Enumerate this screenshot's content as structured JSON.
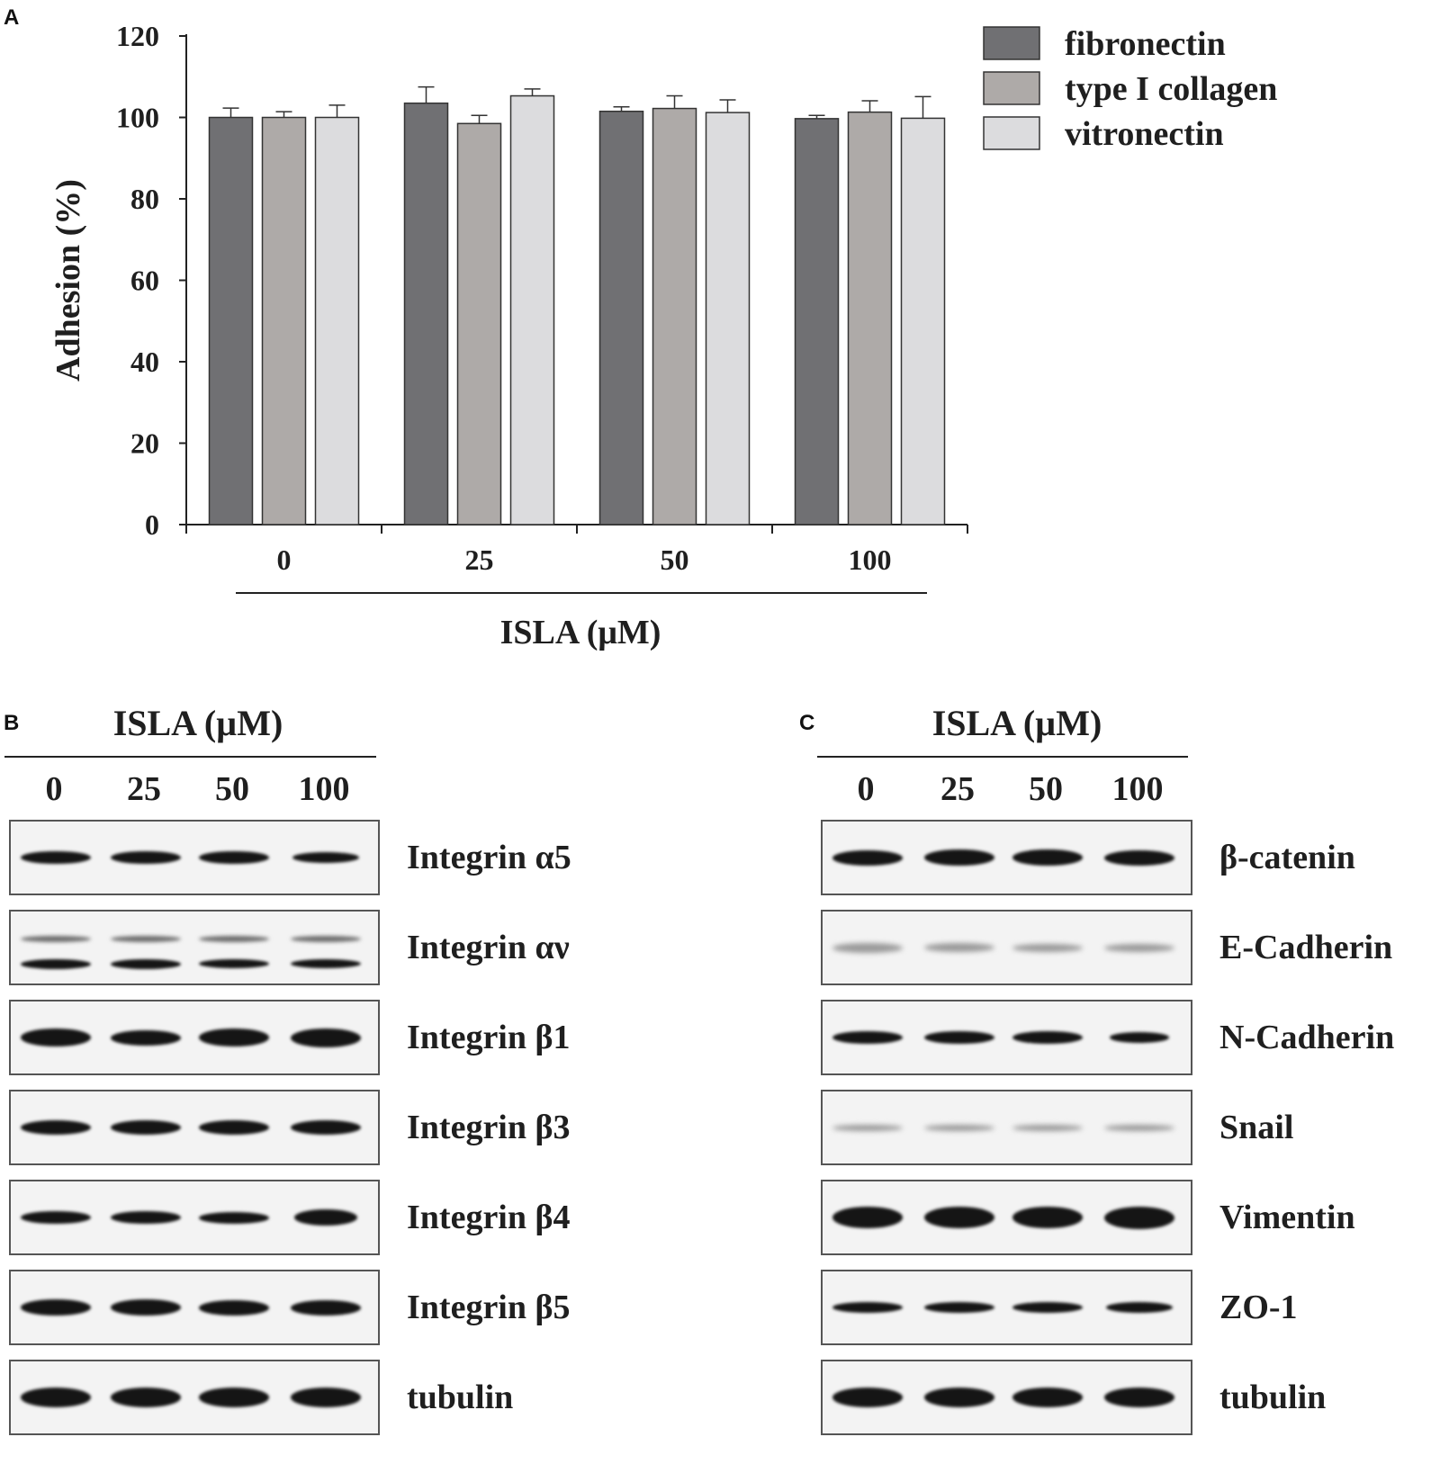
{
  "panels": {
    "a": {
      "letter": "A"
    },
    "b": {
      "letter": "B",
      "title": "ISLA (µM)",
      "lanes": [
        "0",
        "25",
        "50",
        "100"
      ],
      "rows": [
        "Integrin α5",
        "Integrin αν",
        "Integrin β1",
        "Integrin β3",
        "Integrin β4",
        "Integrin β5",
        "tubulin"
      ]
    },
    "c": {
      "letter": "C",
      "title": "ISLA (µM)",
      "lanes": [
        "0",
        "25",
        "50",
        "100"
      ],
      "rows": [
        "β-catenin",
        "E-Cadherin",
        "N-Cadherin",
        "Snail",
        "Vimentin",
        "ZO-1",
        "tubulin"
      ]
    }
  },
  "chart_data": {
    "type": "bar",
    "categories": [
      "0",
      "25",
      "50",
      "100"
    ],
    "xlabel": "ISLA (μM)",
    "ylabel": "Adhesion (%)",
    "ylim": [
      0,
      120
    ],
    "yticks": [
      0,
      20,
      40,
      60,
      80,
      100,
      120
    ],
    "legend_position": "top-right",
    "series": [
      {
        "name": "fibronectin",
        "color": "#707073",
        "values": [
          100,
          103.5,
          101.5,
          99.7
        ],
        "errors": [
          2.3,
          4,
          1.1,
          0.8
        ]
      },
      {
        "name": "type I collagen",
        "color": "#aeaaa8",
        "values": [
          100,
          98.5,
          102.2,
          101.3
        ],
        "errors": [
          1.4,
          2,
          3.1,
          2.8
        ]
      },
      {
        "name": "vitronectin",
        "color": "#dcdcde",
        "values": [
          100,
          105.3,
          101.2,
          99.8
        ],
        "errors": [
          3,
          1.7,
          3.1,
          5.3
        ]
      }
    ]
  }
}
